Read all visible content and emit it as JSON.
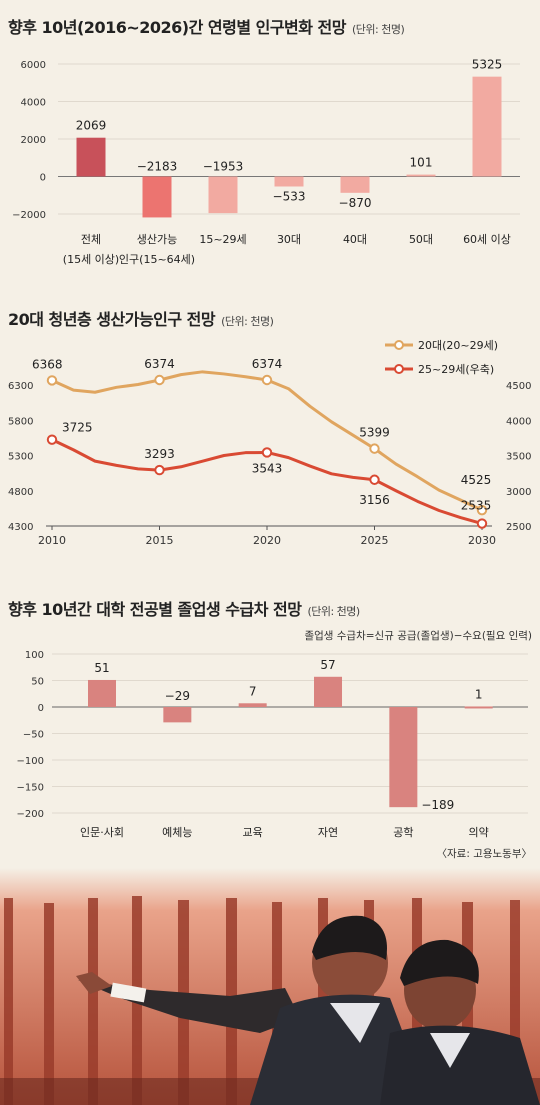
{
  "chart_data": [
    {
      "type": "bar",
      "title": "향후 10년(2016~2026)간 연령별 인구변화 전망",
      "unit": "(단위: 천명)",
      "categories": [
        "전체",
        "생산가능",
        "15~29세",
        "30대",
        "40대",
        "50대",
        "60세 이상"
      ],
      "category_sublabels": [
        "(15세 이상)",
        "인구(15~64세)",
        "",
        "",
        "",
        "",
        ""
      ],
      "values": [
        2069,
        -2183,
        -1953,
        -533,
        -870,
        101,
        5325
      ],
      "value_labels": [
        "2069",
        "−2183",
        "−1953",
        "−533",
        "−870",
        "101",
        "5325"
      ],
      "colors": [
        "#c8515a",
        "#ec7470",
        "#f2aaa1",
        "#f2aaa1",
        "#f2aaa1",
        "#f2aaa1",
        "#f2aaa1"
      ],
      "ylim": [
        -2000,
        6000
      ],
      "yticks": [
        6000,
        4000,
        2000,
        0,
        -2000
      ],
      "ytick_labels": [
        "6000",
        "4000",
        "2000",
        "0",
        "−2000"
      ],
      "grid": true
    },
    {
      "type": "line",
      "title": "20대 청년층 생산가능인구 전망",
      "unit": "(단위: 천명)",
      "x": [
        2010,
        2015,
        2020,
        2025,
        2030
      ],
      "xtick_labels": [
        "2010",
        "2015",
        "2020",
        "2025",
        "2030"
      ],
      "legend_placement": "top-right",
      "series": [
        {
          "name": "20대(20~29세)",
          "axis": "left",
          "color": "#e0a55f",
          "x": [
            2010,
            2011,
            2012,
            2013,
            2014,
            2015,
            2016,
            2017,
            2018,
            2019,
            2020,
            2021,
            2022,
            2023,
            2024,
            2025,
            2026,
            2027,
            2028,
            2029,
            2030
          ],
          "values": [
            6368,
            6230,
            6200,
            6270,
            6310,
            6374,
            6450,
            6490,
            6460,
            6420,
            6374,
            6250,
            6000,
            5780,
            5590,
            5399,
            5180,
            5000,
            4810,
            4670,
            4525
          ],
          "markers": [
            2010,
            2015,
            2020,
            2025,
            2030
          ],
          "labels": [
            "6368",
            "6374",
            "6374",
            "5399",
            "4525"
          ]
        },
        {
          "name": "25~29세(우축)",
          "axis": "right",
          "color": "#d94a33",
          "x": [
            2010,
            2011,
            2012,
            2013,
            2014,
            2015,
            2016,
            2017,
            2018,
            2019,
            2020,
            2021,
            2022,
            2023,
            2024,
            2025,
            2026,
            2027,
            2028,
            2029,
            2030
          ],
          "values": [
            3725,
            3580,
            3420,
            3360,
            3310,
            3293,
            3340,
            3420,
            3500,
            3540,
            3543,
            3470,
            3350,
            3240,
            3190,
            3156,
            3000,
            2850,
            2720,
            2620,
            2535
          ],
          "markers": [
            2010,
            2015,
            2020,
            2025,
            2030
          ],
          "labels": [
            "3725",
            "3293",
            "3543",
            "3156",
            "2535"
          ]
        }
      ],
      "ylim_left": [
        4300,
        6800
      ],
      "yticks_left": [
        "6300",
        "5800",
        "5300",
        "4800",
        "4300"
      ],
      "ylim_right": [
        2500,
        4500
      ],
      "yticks_right": [
        "4500",
        "4000",
        "3500",
        "3000",
        "2500"
      ]
    },
    {
      "type": "bar",
      "title": "향후 10년간 대학 전공별 졸업생 수급차 전망",
      "unit": "(단위: 천명)",
      "note": "졸업생 수급차=신규 공급(졸업생)−수요(필요 인력)",
      "categories": [
        "인문·사회",
        "예체능",
        "교육",
        "자연",
        "공학",
        "의약"
      ],
      "values": [
        51,
        -29,
        7,
        57,
        -189,
        1
      ],
      "value_labels": [
        "51",
        "−29",
        "7",
        "57",
        "−189",
        "1"
      ],
      "color": "#d9837f",
      "ylim": [
        -200,
        100
      ],
      "yticks": [
        "100",
        "50",
        "0",
        "−50",
        "−100",
        "−150",
        "−200"
      ],
      "grid": true,
      "source": "〈자료: 고용노동부〉"
    }
  ]
}
